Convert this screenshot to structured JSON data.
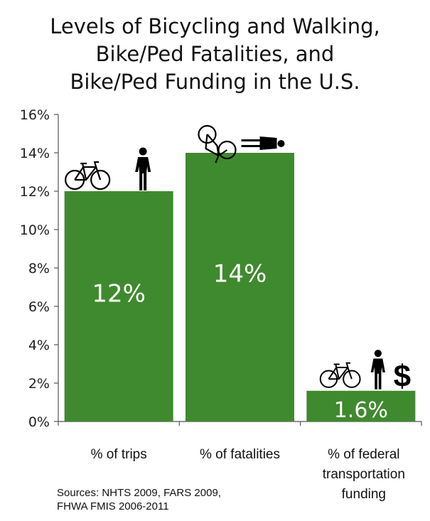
{
  "title_lines": [
    "Levels of Bicycling and Walking,",
    "Bike/Ped Fatalities, and",
    "Bike/Ped Funding in the U.S."
  ],
  "sources": [
    "Sources: NHTS 2009, FARS 2009,",
    "FHWA FMIS 2006-2011"
  ],
  "chart_data": {
    "type": "bar",
    "categories": [
      [
        "% of trips"
      ],
      [
        "% of fatalities"
      ],
      [
        "% of federal",
        "transportation",
        "funding"
      ]
    ],
    "values": [
      12,
      14,
      1.6
    ],
    "data_labels": [
      "12%",
      "14%",
      "1.6%"
    ],
    "ylim": [
      0,
      16
    ],
    "yticks": [
      0,
      2,
      4,
      6,
      8,
      10,
      12,
      14,
      16
    ],
    "ytick_labels": [
      "0%",
      "2%",
      "4%",
      "6%",
      "8%",
      "10%",
      "12%",
      "14%",
      "16%"
    ],
    "xlabel": "",
    "ylabel": "",
    "grid": false,
    "legend": "none",
    "bar_color": "#3f8a2e",
    "icons": [
      [
        "bicycle-icon",
        "pedestrian-icon"
      ],
      [
        "fallen-cyclist-icon",
        "fallen-pedestrian-icon"
      ],
      [
        "bicycle-icon",
        "pedestrian-icon",
        "dollar-icon"
      ]
    ],
    "dollar_symbol": "$"
  }
}
